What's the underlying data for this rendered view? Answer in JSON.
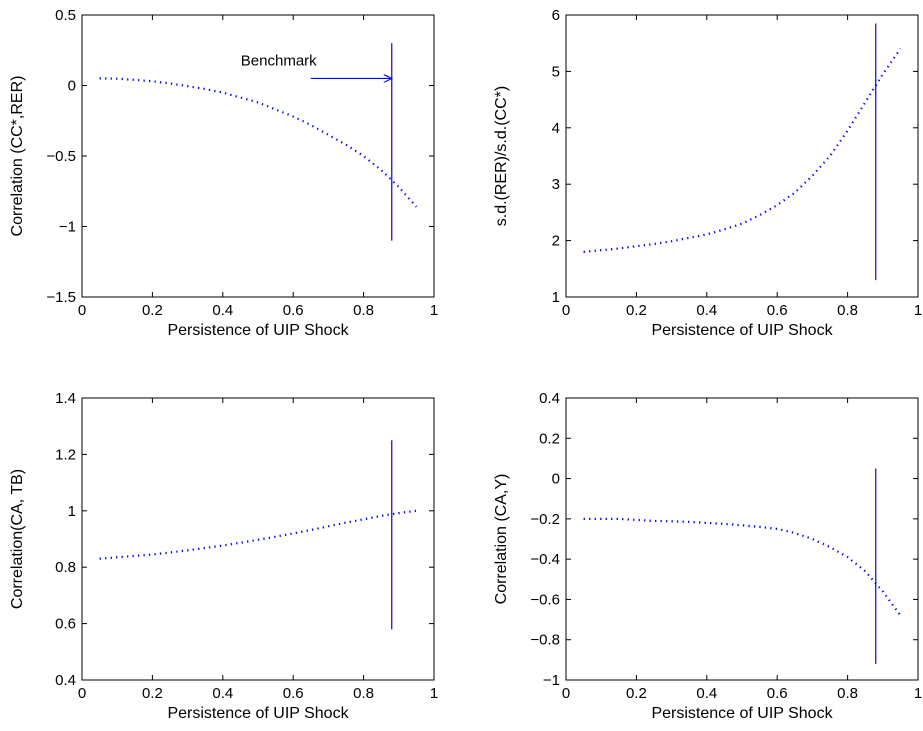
{
  "chart_data": [
    {
      "type": "line",
      "xlabel": "Persistence of UIP Shock",
      "ylabel": "Correlation (CC*,RER)",
      "xlim": [
        0,
        1
      ],
      "ylim": [
        -1.5,
        0.5
      ],
      "xticks": [
        0,
        0.2,
        0.4,
        0.6,
        0.8,
        1
      ],
      "xtick_labels": [
        "0",
        "0.2",
        "0.4",
        "0.6",
        "0.8",
        "1"
      ],
      "yticks": [
        -1.5,
        -1,
        -0.5,
        0,
        0.5
      ],
      "ytick_labels": [
        "−1.5",
        "−1",
        "−0.5",
        "0",
        "0.5"
      ],
      "grid": false,
      "line_style": "dotted",
      "color": "#0000ff",
      "series": [
        {
          "x": [
            0.05,
            0.1,
            0.15,
            0.2,
            0.25,
            0.3,
            0.35,
            0.4,
            0.45,
            0.5,
            0.55,
            0.6,
            0.65,
            0.7,
            0.75,
            0.8,
            0.85,
            0.9,
            0.95
          ],
          "values": [
            0.05,
            0.048,
            0.04,
            0.03,
            0.015,
            -0.005,
            -0.025,
            -0.05,
            -0.085,
            -0.12,
            -0.17,
            -0.22,
            -0.28,
            -0.35,
            -0.42,
            -0.5,
            -0.6,
            -0.72,
            -0.86
          ]
        }
      ],
      "vline": {
        "x": 0.88,
        "y_range": [
          -1.1,
          0.3
        ]
      },
      "annotations": [
        {
          "text": "Benchmark",
          "arrow_from": [
            0.65,
            0.05
          ],
          "arrow_to": [
            0.88,
            0.05
          ]
        }
      ]
    },
    {
      "type": "line",
      "xlabel": "Persistence of UIP Shock",
      "ylabel": "s.d.(RER)/s.d.(CC*)",
      "xlim": [
        0,
        1
      ],
      "ylim": [
        1,
        6
      ],
      "xticks": [
        0,
        0.2,
        0.4,
        0.6,
        0.8,
        1
      ],
      "xtick_labels": [
        "0",
        "0.2",
        "0.4",
        "0.6",
        "0.8",
        "1"
      ],
      "yticks": [
        1,
        2,
        3,
        4,
        5,
        6
      ],
      "ytick_labels": [
        "1",
        "2",
        "3",
        "4",
        "5",
        "6"
      ],
      "grid": false,
      "line_style": "dotted",
      "color": "#0000ff",
      "series": [
        {
          "x": [
            0.05,
            0.1,
            0.15,
            0.2,
            0.25,
            0.3,
            0.35,
            0.4,
            0.45,
            0.5,
            0.55,
            0.6,
            0.65,
            0.7,
            0.75,
            0.8,
            0.85,
            0.9,
            0.95
          ],
          "values": [
            1.8,
            1.83,
            1.86,
            1.9,
            1.94,
            1.99,
            2.05,
            2.11,
            2.2,
            2.3,
            2.45,
            2.63,
            2.85,
            3.15,
            3.5,
            3.95,
            4.45,
            4.95,
            5.4
          ]
        }
      ],
      "vline": {
        "x": 0.88,
        "y_range": [
          1.3,
          5.85
        ]
      }
    },
    {
      "type": "line",
      "xlabel": "Persistence of UIP Shock",
      "ylabel": "Correlation(CA, TB)",
      "xlim": [
        0,
        1
      ],
      "ylim": [
        0.4,
        1.4
      ],
      "xticks": [
        0,
        0.2,
        0.4,
        0.6,
        0.8,
        1
      ],
      "xtick_labels": [
        "0",
        "0.2",
        "0.4",
        "0.6",
        "0.8",
        "1"
      ],
      "yticks": [
        0.4,
        0.6,
        0.8,
        1,
        1.2,
        1.4
      ],
      "ytick_labels": [
        "0.4",
        "0.6",
        "0.8",
        "1",
        "1.2",
        "1.4"
      ],
      "grid": false,
      "line_style": "dotted",
      "color": "#0000ff",
      "series": [
        {
          "x": [
            0.05,
            0.1,
            0.15,
            0.2,
            0.25,
            0.3,
            0.35,
            0.4,
            0.45,
            0.5,
            0.55,
            0.6,
            0.65,
            0.7,
            0.75,
            0.8,
            0.85,
            0.9,
            0.95
          ],
          "values": [
            0.83,
            0.835,
            0.84,
            0.845,
            0.852,
            0.86,
            0.868,
            0.877,
            0.887,
            0.897,
            0.908,
            0.92,
            0.932,
            0.945,
            0.958,
            0.97,
            0.982,
            0.992,
            1.0
          ]
        }
      ],
      "vline": {
        "x": 0.88,
        "y_range": [
          0.58,
          1.25
        ]
      }
    },
    {
      "type": "line",
      "xlabel": "Persistence of UIP Shock",
      "ylabel": "Correlation (CA,Y)",
      "xlim": [
        0,
        1
      ],
      "ylim": [
        -1,
        0.4
      ],
      "xticks": [
        0,
        0.2,
        0.4,
        0.6,
        0.8,
        1
      ],
      "xtick_labels": [
        "0",
        "0.2",
        "0.4",
        "0.6",
        "0.8",
        "1"
      ],
      "yticks": [
        -1,
        -0.8,
        -0.6,
        -0.4,
        -0.2,
        0,
        0.2,
        0.4
      ],
      "ytick_labels": [
        "−1",
        "−0.8",
        "−0.6",
        "−0.4",
        "−0.2",
        "0",
        "0.2",
        "0.4"
      ],
      "grid": false,
      "line_style": "dotted",
      "color": "#0000ff",
      "series": [
        {
          "x": [
            0.05,
            0.1,
            0.15,
            0.2,
            0.25,
            0.3,
            0.35,
            0.4,
            0.45,
            0.5,
            0.55,
            0.6,
            0.65,
            0.7,
            0.75,
            0.8,
            0.85,
            0.9,
            0.95
          ],
          "values": [
            -0.2,
            -0.2,
            -0.2,
            -0.205,
            -0.21,
            -0.212,
            -0.215,
            -0.22,
            -0.225,
            -0.232,
            -0.24,
            -0.25,
            -0.27,
            -0.3,
            -0.34,
            -0.39,
            -0.46,
            -0.56,
            -0.68
          ]
        }
      ],
      "vline": {
        "x": 0.88,
        "y_range": [
          -0.92,
          0.05
        ]
      }
    }
  ]
}
